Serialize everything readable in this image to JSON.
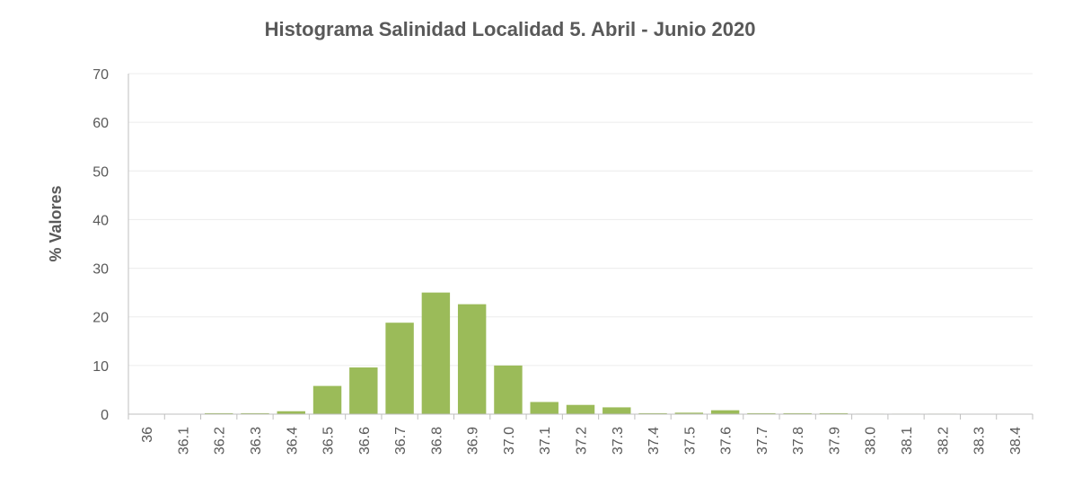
{
  "chart_data": {
    "type": "bar",
    "title": "Histograma Salinidad Localidad 5. Abril - Junio 2020",
    "xlabel": "",
    "ylabel": "% Valores",
    "ylim": [
      0,
      70
    ],
    "yticks": [
      "0",
      "10",
      "20",
      "30",
      "40",
      "50",
      "60",
      "70"
    ],
    "grid": true,
    "bar_color": "#9bbb59",
    "categories": [
      "36",
      "36.1",
      "36.2",
      "36.3",
      "36.4",
      "36.5",
      "36.6",
      "36.7",
      "36.8",
      "36.9",
      "37.0",
      "37.1",
      "37.2",
      "37.3",
      "37.4",
      "37.5",
      "37.6",
      "37.7",
      "37.8",
      "37.9",
      "38.0",
      "38.1",
      "38.2",
      "38.3",
      "38.4"
    ],
    "values": [
      0,
      0,
      0.2,
      0.2,
      0.6,
      5.8,
      9.6,
      18.8,
      25.0,
      22.6,
      10.0,
      2.5,
      1.9,
      1.4,
      0.2,
      0.3,
      0.8,
      0.2,
      0.2,
      0.2,
      0.1,
      0.1,
      0.1,
      0,
      0
    ]
  }
}
